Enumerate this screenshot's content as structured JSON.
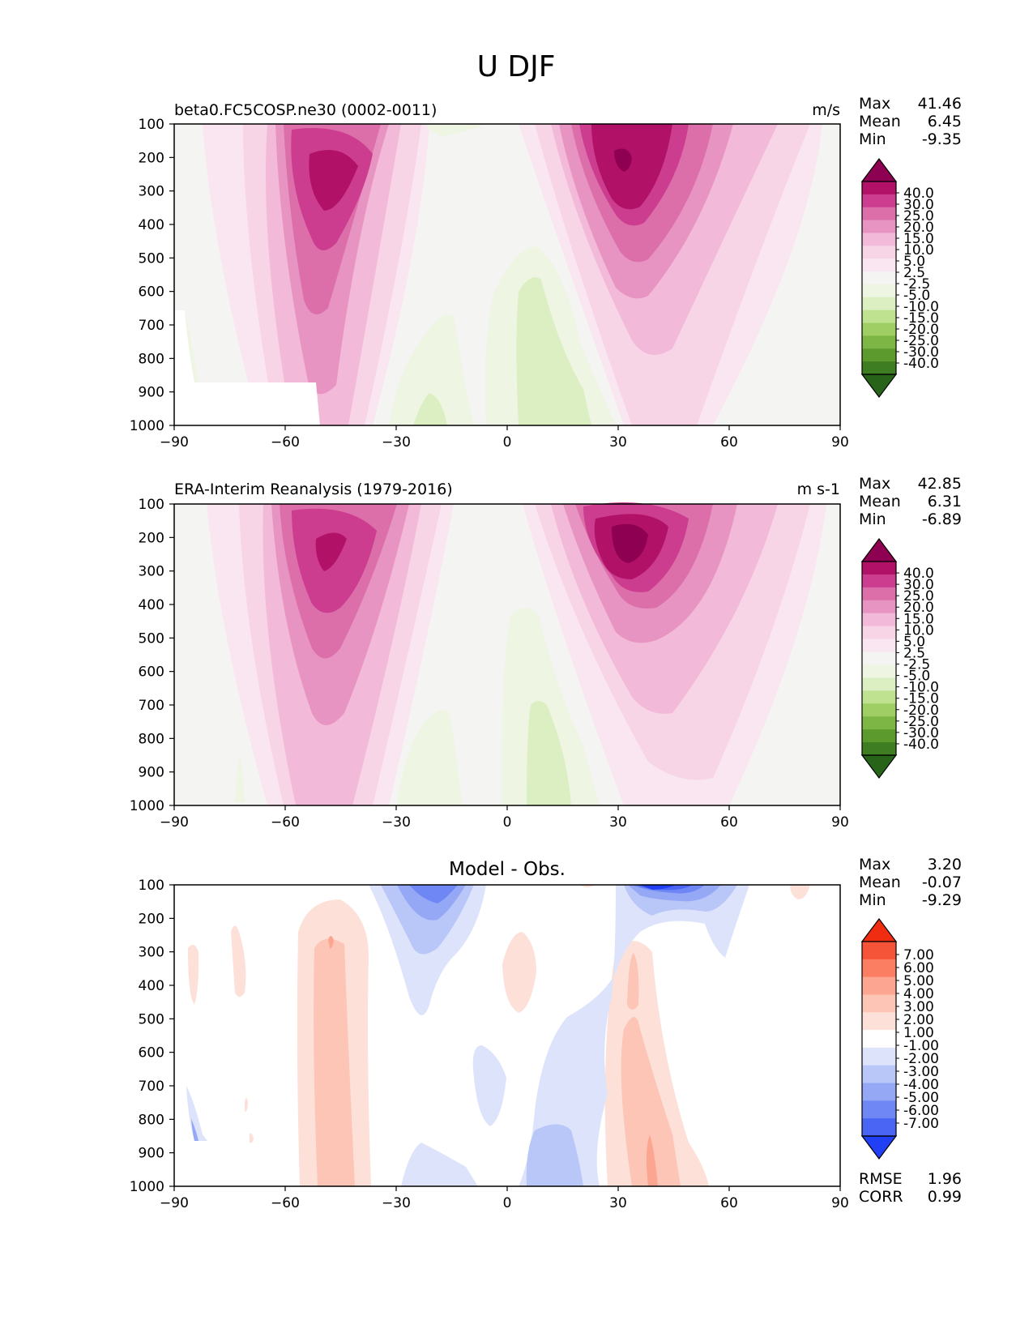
{
  "figure_title": "U DJF",
  "colors": {
    "pink_levels": [
      "#F4F4F2",
      "#FAE6F0",
      "#F7D4E6",
      "#F2B9D8",
      "#E894C3",
      "#DC6FAA",
      "#CC3C8F",
      "#B11268",
      "#8E0152"
    ],
    "green_levels": [
      "#F4F4F2",
      "#EEF5E3",
      "#DCEFC3",
      "#BEE290",
      "#9FCF64",
      "#7DB644",
      "#5D9A2D",
      "#3E7D22",
      "#276419"
    ],
    "diff_pos": [
      "#FFFFFF",
      "#FDE0D8",
      "#FCC5B5",
      "#FCA590",
      "#FB7E62",
      "#F65439",
      "#F02D10"
    ],
    "diff_neg": [
      "#FFFFFF",
      "#DCE3FB",
      "#B9C6F8",
      "#95A8F6",
      "#6F87F4",
      "#4A64F3",
      "#2140F5"
    ]
  },
  "chart_data": [
    {
      "type": "heatmap",
      "title": "beta0.FC5COSP.ne30 (0002-0011)",
      "units": "m/s",
      "x_ticks": [
        "−90",
        "−60",
        "−30",
        "0",
        "30",
        "60",
        "90"
      ],
      "xlim": [
        -90,
        90
      ],
      "y_ticks": [
        "100",
        "200",
        "300",
        "400",
        "500",
        "600",
        "700",
        "800",
        "900",
        "1000"
      ],
      "ylim": [
        1000,
        100
      ],
      "stats": {
        "max_label": "Max",
        "max": "41.46",
        "mean_label": "Mean",
        "mean": "6.45",
        "min_label": "Min",
        "min": "-9.35"
      },
      "colorbar_levels": [
        "40.0",
        "30.0",
        "25.0",
        "20.0",
        "15.0",
        "10.0",
        "5.0",
        "2.5",
        "-2.5",
        "-5.0",
        "-10.0",
        "-15.0",
        "-20.0",
        "-25.0",
        "-30.0",
        "-40.0"
      ],
      "jets": [
        {
          "lat": -47,
          "plev": 250,
          "peak": 35
        },
        {
          "lat": 31,
          "plev": 200,
          "peak": 41.46
        }
      ],
      "easterly_regions": [
        {
          "lat": 10,
          "plev": 800,
          "min": -9.35
        },
        {
          "lat": -20,
          "plev": 900,
          "min": -8
        }
      ]
    },
    {
      "type": "heatmap",
      "title": "ERA-Interim Reanalysis (1979-2016)",
      "units": "m s-1",
      "x_ticks": [
        "−90",
        "−60",
        "−30",
        "0",
        "30",
        "60",
        "90"
      ],
      "xlim": [
        -90,
        90
      ],
      "y_ticks": [
        "100",
        "200",
        "300",
        "400",
        "500",
        "600",
        "700",
        "800",
        "900",
        "1000"
      ],
      "ylim": [
        1000,
        100
      ],
      "stats": {
        "max_label": "Max",
        "max": "42.85",
        "mean_label": "Mean",
        "mean": "6.31",
        "min_label": "Min",
        "min": "-6.89"
      },
      "colorbar_levels": [
        "40.0",
        "30.0",
        "25.0",
        "20.0",
        "15.0",
        "10.0",
        "5.0",
        "2.5",
        "-2.5",
        "-5.0",
        "-10.0",
        "-15.0",
        "-20.0",
        "-25.0",
        "-30.0",
        "-40.0"
      ],
      "jets": [
        {
          "lat": -49,
          "plev": 220,
          "peak": 36
        },
        {
          "lat": 31,
          "plev": 200,
          "peak": 42.85
        }
      ],
      "easterly_regions": [
        {
          "lat": 8,
          "plev": 850,
          "min": -6.89
        }
      ]
    },
    {
      "type": "heatmap",
      "title": "Model - Obs.",
      "units": "",
      "x_ticks": [
        "−90",
        "−60",
        "−30",
        "0",
        "30",
        "60",
        "90"
      ],
      "xlim": [
        -90,
        90
      ],
      "y_ticks": [
        "100",
        "200",
        "300",
        "400",
        "500",
        "600",
        "700",
        "800",
        "900",
        "1000"
      ],
      "ylim": [
        1000,
        100
      ],
      "stats": {
        "max_label": "Max",
        "max": "3.20",
        "mean_label": "Mean",
        "mean": "-0.07",
        "min_label": "Min",
        "min": "-9.29"
      },
      "colorbar_levels": [
        "7.00",
        "6.00",
        "5.00",
        "4.00",
        "3.00",
        "2.00",
        "1.00",
        "-1.00",
        "-2.00",
        "-3.00",
        "-4.00",
        "-5.00",
        "-6.00",
        "-7.00"
      ],
      "extra_stats": {
        "rmse_label": "RMSE",
        "rmse": "1.96",
        "corr_label": "CORR",
        "corr": "0.99"
      }
    }
  ]
}
